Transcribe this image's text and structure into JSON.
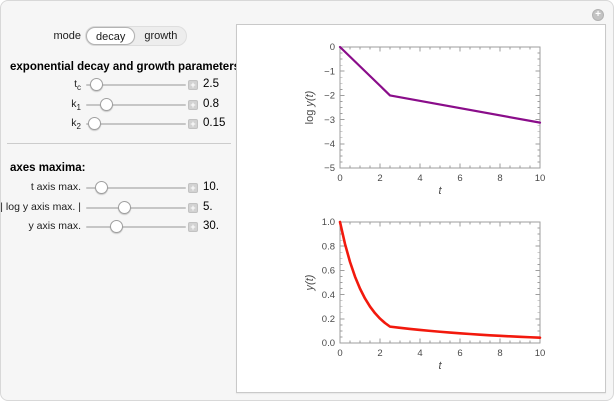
{
  "icons": {
    "plus": "+"
  },
  "controls": {
    "mode": {
      "label": "mode",
      "options": [
        {
          "label": "decay",
          "selected": true
        },
        {
          "label": "growth",
          "selected": false
        }
      ]
    },
    "param_heading": "exponential decay and growth parameters:",
    "axes_heading": "axes maxima:",
    "sliders": [
      {
        "label_main": "t",
        "label_sub": "c",
        "value": "2.5",
        "fraction": 0.1
      },
      {
        "label_main": "k",
        "label_sub": "1",
        "value": "0.8",
        "fraction": 0.2
      },
      {
        "label_main": "k",
        "label_sub": "2",
        "value": "0.15",
        "fraction": 0.08
      },
      {
        "label_main": "t axis max.",
        "label_sub": "",
        "value": "10.",
        "fraction": 0.15
      },
      {
        "label_main": "| log y axis max. |",
        "label_sub": "",
        "value": "5.",
        "fraction": 0.38
      },
      {
        "label_main": "y axis max.",
        "label_sub": "",
        "value": "30.",
        "fraction": 0.3
      }
    ]
  },
  "chart_data": [
    {
      "type": "line",
      "title": "",
      "xlabel": "t",
      "ylabel_prefix": "log ",
      "ylabel_var": "y(t)",
      "xlim": [
        0,
        10
      ],
      "ylim": [
        -5,
        0
      ],
      "x_tick_values": [
        0,
        2,
        4,
        6,
        8,
        10
      ],
      "x_tick_labels": [
        "0",
        "2",
        "4",
        "6",
        "8",
        "10"
      ],
      "y_tick_values": [
        0,
        -1,
        -2,
        -3,
        -4,
        -5
      ],
      "y_tick_labels": [
        "0",
        "−1",
        "−2",
        "−3",
        "−4",
        "−5"
      ],
      "x_minor_step": 0.5,
      "y_minor_step": 0.25,
      "grid": false,
      "legend": "none",
      "color": "#8a0d8a",
      "series": [
        {
          "name": "log y(t), k1=0.8 then k2=0.15 after tc=2.5",
          "points": [
            [
              0,
              0
            ],
            [
              2.5,
              -2
            ],
            [
              10,
              -3.125
            ]
          ]
        }
      ]
    },
    {
      "type": "line",
      "title": "",
      "xlabel": "t",
      "ylabel_prefix": "",
      "ylabel_var": "y(t)",
      "xlim": [
        0,
        10
      ],
      "ylim": [
        0,
        1
      ],
      "x_tick_values": [
        0,
        2,
        4,
        6,
        8,
        10
      ],
      "x_tick_labels": [
        "0",
        "2",
        "4",
        "6",
        "8",
        "10"
      ],
      "y_tick_values": [
        0,
        0.2,
        0.4,
        0.6,
        0.8,
        1.0
      ],
      "y_tick_labels": [
        "0.0",
        "0.2",
        "0.4",
        "0.6",
        "0.8",
        "1.0"
      ],
      "x_minor_step": 0.5,
      "y_minor_step": 0.05,
      "grid": false,
      "legend": "none",
      "color": "#f2190d",
      "series": [
        {
          "name": "y(t) = exp(-0.8 t) for t<2.5, then exp(-0.15 (t-2.5)) branch",
          "points": [
            [
              0,
              1.0
            ],
            [
              0.25,
              0.8187
            ],
            [
              0.5,
              0.6703
            ],
            [
              0.75,
              0.5488
            ],
            [
              1,
              0.4493
            ],
            [
              1.25,
              0.3679
            ],
            [
              1.5,
              0.3012
            ],
            [
              1.75,
              0.2466
            ],
            [
              2,
              0.2019
            ],
            [
              2.25,
              0.1653
            ],
            [
              2.5,
              0.1353
            ],
            [
              3,
              0.1256
            ],
            [
              3.5,
              0.1165
            ],
            [
              4,
              0.1081
            ],
            [
              4.5,
              0.1003
            ],
            [
              5,
              0.093
            ],
            [
              5.5,
              0.0863
            ],
            [
              6,
              0.0801
            ],
            [
              6.5,
              0.0743
            ],
            [
              7,
              0.0689
            ],
            [
              7.5,
              0.0639
            ],
            [
              8,
              0.0593
            ],
            [
              8.5,
              0.055
            ],
            [
              9,
              0.051
            ],
            [
              9.5,
              0.0474
            ],
            [
              10,
              0.0439
            ]
          ]
        }
      ]
    }
  ]
}
